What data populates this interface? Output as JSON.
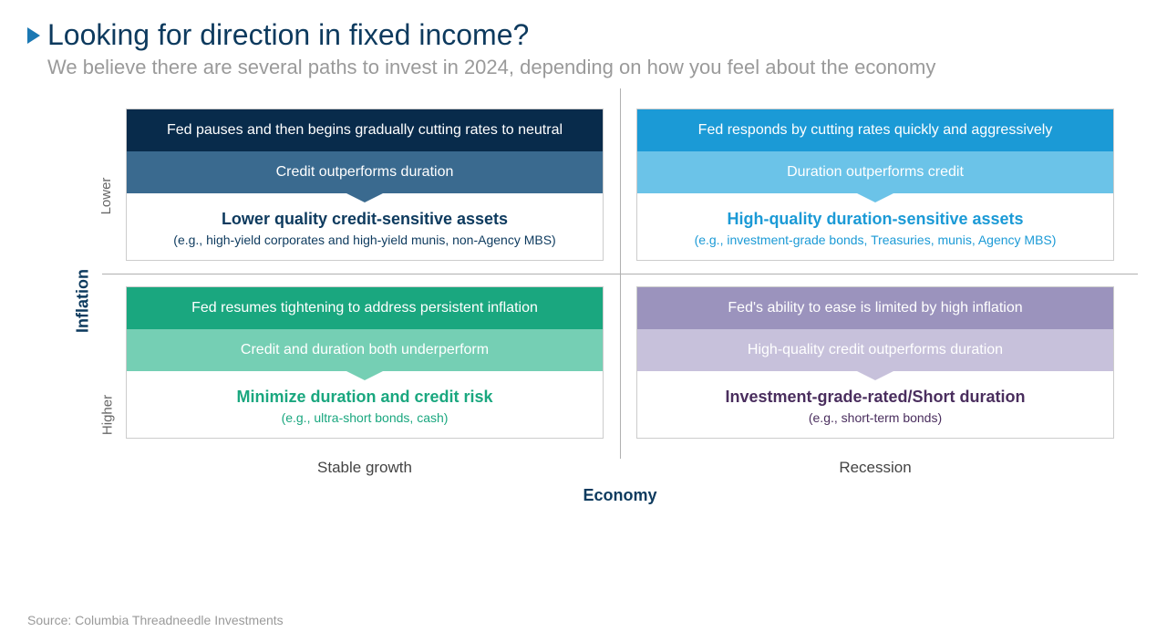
{
  "header": {
    "title": "Looking for direction in fixed income?",
    "subtitle": "We believe there are several paths to invest in 2024, depending on how you feel about the economy"
  },
  "axes": {
    "y_label": "Inflation",
    "y_lower": "Lower",
    "y_higher": "Higher",
    "x_label": "Economy",
    "x_left": "Stable growth",
    "x_right": "Recession"
  },
  "quadrants": {
    "top_left": {
      "row1": "Fed pauses and then begins gradually cutting rates to neutral",
      "row2": "Credit outperforms duration",
      "bold": "Lower quality credit-sensitive assets",
      "sub": "(e.g., high-yield corporates and high-yield munis, non-Agency MBS)",
      "color1": "#082b4b",
      "color2": "#3a6a8f",
      "text_color": "#0d3a5e"
    },
    "top_right": {
      "row1": "Fed responds by cutting rates quickly and aggressively",
      "row2": "Duration outperforms credit",
      "bold": "High-quality duration-sensitive assets",
      "sub": "(e.g., investment-grade bonds, Treasuries, munis, Agency MBS)",
      "color1": "#1b9ad6",
      "color2": "#6bc3e8",
      "text_color": "#1b9ad6"
    },
    "bottom_left": {
      "row1": "Fed resumes tightening to address persistent inflation",
      "row2": "Credit and duration both underperform",
      "bold": "Minimize duration and credit risk",
      "sub": "(e.g., ultra-short bonds, cash)",
      "color1": "#1aa77f",
      "color2": "#75cfb4",
      "text_color": "#1aa77f"
    },
    "bottom_right": {
      "row1": "Fed's ability to ease is limited by high inflation",
      "row2": "High-quality credit outperforms duration",
      "bold": "Investment-grade-rated/Short duration",
      "sub": "(e.g., short-term bonds)",
      "color1": "#9b93bd",
      "color2": "#c7c1db",
      "text_color": "#4a2e5e"
    }
  },
  "source": "Source: Columbia Threadneedle Investments"
}
